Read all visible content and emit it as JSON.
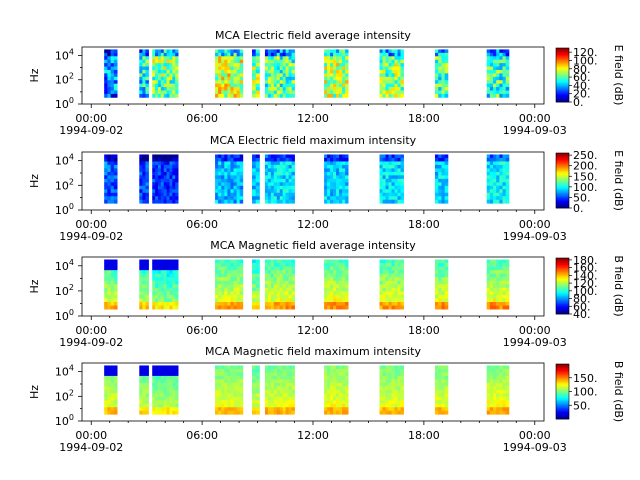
{
  "chart_data": [
    {
      "type": "heatmap",
      "title": "MCA  Electric field average intensity",
      "ylabel": "Hz",
      "yticks": [
        "10^0",
        "10^2",
        "10^4"
      ],
      "xticks": [
        "00:00",
        "06:00",
        "12:00",
        "18:00",
        "00:00"
      ],
      "xdates": [
        "1994-09-02",
        "1994-09-03"
      ],
      "x_range_hours": [
        -0.5,
        24.5
      ],
      "y_range_log10": [
        0,
        4.7
      ],
      "colorbar": {
        "label": "E field (dB)",
        "min": 0,
        "max": 130,
        "ticks": [
          "0.",
          "20.",
          "40.",
          "60.",
          "80.",
          "100.",
          "120."
        ]
      },
      "data_intervals_hours": [
        [
          0.7,
          1.4
        ],
        [
          2.6,
          3.1
        ],
        [
          3.3,
          4.7
        ],
        [
          6.7,
          8.2
        ],
        [
          8.7,
          9.1
        ],
        [
          9.4,
          11.0
        ],
        [
          12.6,
          13.9
        ],
        [
          15.6,
          16.9
        ],
        [
          18.6,
          19.3
        ],
        [
          21.4,
          22.6
        ]
      ],
      "intensity_profile": [
        40,
        55,
        70,
        75,
        65,
        60,
        70,
        65,
        60,
        55
      ]
    },
    {
      "type": "heatmap",
      "title": "MCA  Electric field maximum intensity",
      "ylabel": "Hz",
      "yticks": [
        "10^0",
        "10^2",
        "10^4"
      ],
      "xticks": [
        "00:00",
        "06:00",
        "12:00",
        "18:00",
        "00:00"
      ],
      "xdates": [
        "1994-09-02",
        "1994-09-03"
      ],
      "x_range_hours": [
        -0.5,
        24.5
      ],
      "y_range_log10": [
        0,
        4.7
      ],
      "colorbar": {
        "label": "E field (dB)",
        "min": 0,
        "max": 260,
        "ticks": [
          "0.",
          "50.",
          "100.",
          "150.",
          "200.",
          "250."
        ]
      },
      "data_intervals_hours": [
        [
          0.7,
          1.4
        ],
        [
          2.6,
          3.1
        ],
        [
          3.3,
          4.7
        ],
        [
          6.7,
          8.2
        ],
        [
          8.7,
          9.1
        ],
        [
          9.4,
          11.0
        ],
        [
          12.6,
          13.9
        ],
        [
          15.6,
          16.9
        ],
        [
          18.6,
          19.3
        ],
        [
          21.4,
          22.6
        ]
      ],
      "intensity_profile": [
        60,
        55,
        50,
        80,
        85,
        90,
        85,
        90,
        88,
        95
      ]
    },
    {
      "type": "heatmap",
      "title": "MCA  Magnetic field average intensity",
      "ylabel": "Hz",
      "yticks": [
        "10^0",
        "10^2",
        "10^4"
      ],
      "xticks": [
        "00:00",
        "06:00",
        "12:00",
        "18:00",
        "00:00"
      ],
      "xdates": [
        "1994-09-02",
        "1994-09-03"
      ],
      "x_range_hours": [
        -0.5,
        24.5
      ],
      "y_range_log10": [
        0,
        4.7
      ],
      "colorbar": {
        "label": "B field (dB)",
        "min": 40,
        "max": 185,
        "ticks": [
          "40.",
          "60.",
          "80.",
          "100.",
          "120.",
          "140.",
          "160.",
          "180."
        ]
      },
      "data_intervals_hours": [
        [
          0.7,
          1.4
        ],
        [
          2.6,
          3.1
        ],
        [
          3.3,
          4.7
        ],
        [
          6.7,
          8.2
        ],
        [
          8.7,
          9.1
        ],
        [
          9.4,
          11.0
        ],
        [
          12.6,
          13.9
        ],
        [
          15.6,
          16.9
        ],
        [
          18.6,
          19.3
        ],
        [
          21.4,
          22.6
        ]
      ],
      "intensity_profile": [
        115,
        110,
        105,
        118,
        112,
        118,
        120,
        118,
        118,
        120
      ]
    },
    {
      "type": "heatmap",
      "title": "MCA  Magnetic field maximum intensity",
      "ylabel": "Hz",
      "yticks": [
        "10^0",
        "10^2",
        "10^4"
      ],
      "xticks": [
        "00:00",
        "06:00",
        "12:00",
        "18:00",
        "00:00"
      ],
      "xdates": [
        "1994-09-02",
        "1994-09-03"
      ],
      "x_range_hours": [
        -0.5,
        24.5
      ],
      "y_range_log10": [
        0,
        4.7
      ],
      "colorbar": {
        "label": "B field (dB)",
        "min": 0,
        "max": 200,
        "ticks": [
          "50.",
          "100.",
          "150."
        ]
      },
      "data_intervals_hours": [
        [
          0.7,
          1.4
        ],
        [
          2.6,
          3.1
        ],
        [
          3.3,
          4.7
        ],
        [
          6.7,
          8.2
        ],
        [
          8.7,
          9.1
        ],
        [
          9.4,
          11.0
        ],
        [
          12.6,
          13.9
        ],
        [
          15.6,
          16.9
        ],
        [
          18.6,
          19.3
        ],
        [
          21.4,
          22.6
        ]
      ],
      "intensity_profile": [
        110,
        105,
        100,
        112,
        108,
        112,
        115,
        112,
        112,
        115
      ]
    }
  ]
}
